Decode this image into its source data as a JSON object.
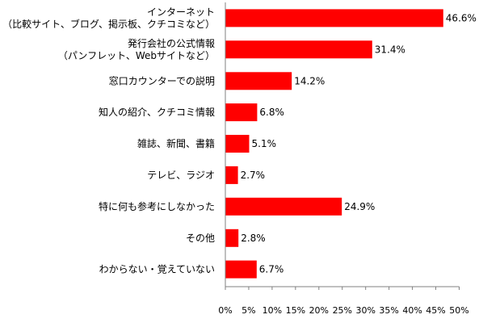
{
  "chart_data": {
    "type": "bar",
    "orientation": "horizontal",
    "categories": [
      [
        "インターネット",
        "（比較サイト、ブログ、掲示板、クチコミなど）"
      ],
      [
        "発行会社の公式情報",
        "（パンフレット、Webサイトなど）"
      ],
      [
        "窓口カウンターでの説明"
      ],
      [
        "知人の紹介、クチコミ情報"
      ],
      [
        "雑誌、新聞、書籍"
      ],
      [
        "テレビ、ラジオ"
      ],
      [
        "特に何も参考にしなかった"
      ],
      [
        "その他"
      ],
      [
        "わからない・覚えていない"
      ]
    ],
    "values": [
      46.6,
      31.4,
      14.2,
      6.8,
      5.1,
      2.7,
      24.9,
      2.8,
      6.7
    ],
    "value_labels": [
      "46.6%",
      "31.4%",
      "14.2%",
      "6.8%",
      "5.1%",
      "2.7%",
      "24.9%",
      "2.8%",
      "6.7%"
    ],
    "xlim": [
      0,
      50
    ],
    "xticks": [
      "0%",
      "5%",
      "10%",
      "15%",
      "20%",
      "25%",
      "30%",
      "35%",
      "40%",
      "45%",
      "50%"
    ],
    "bar_color": "#ff0000",
    "grid": false,
    "legend": "none"
  }
}
